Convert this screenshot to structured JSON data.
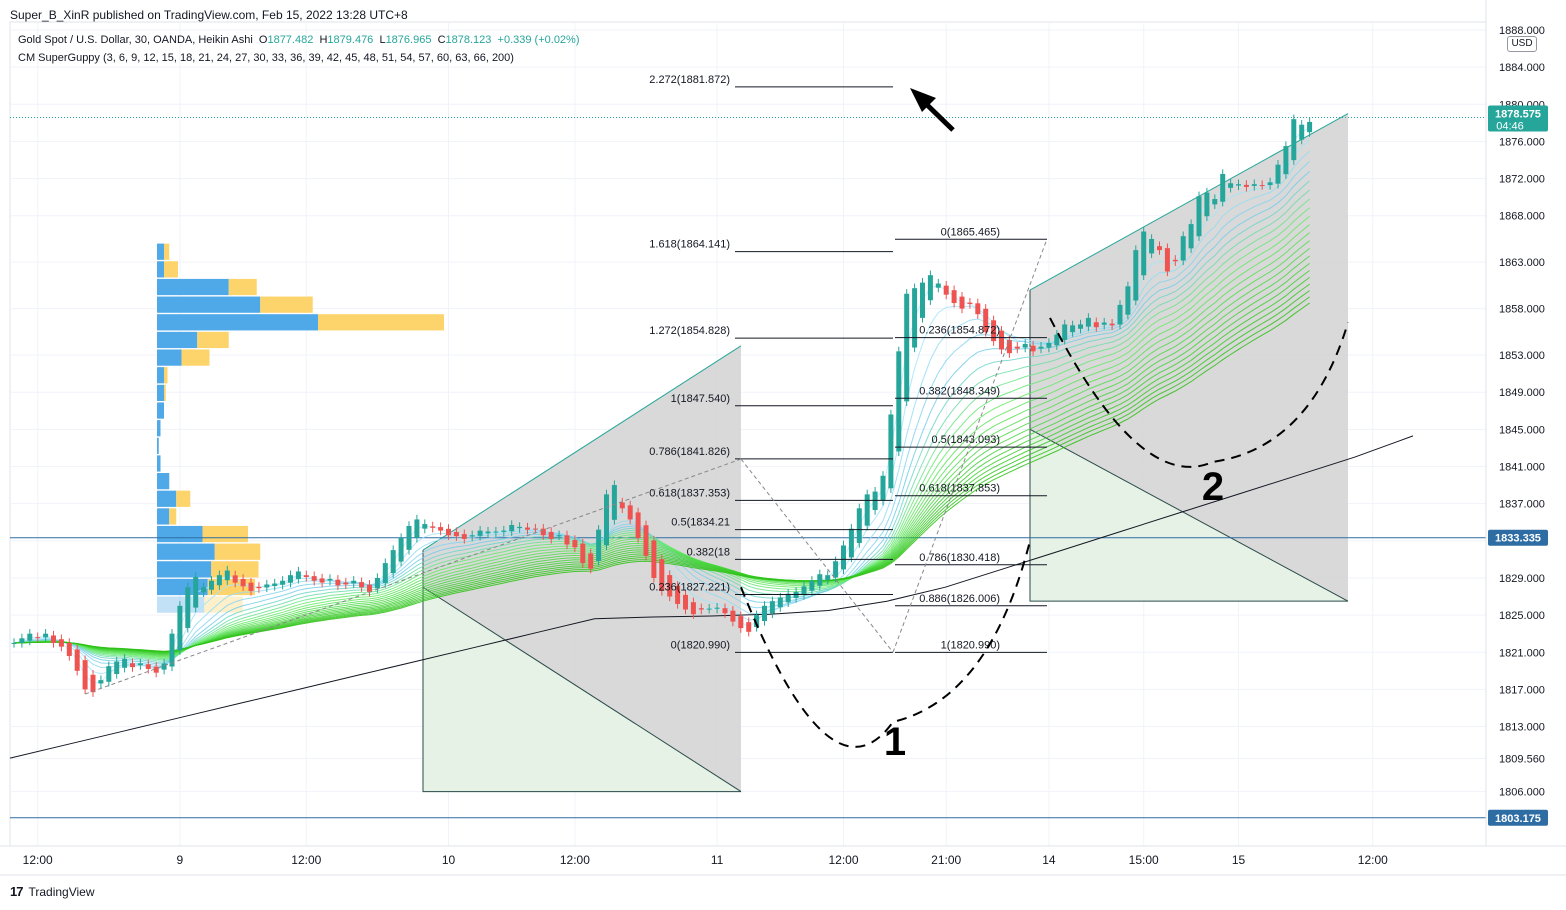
{
  "header": {
    "publisher_line": "Super_B_XinR published on TradingView.com, Feb 15, 2022 13:28 UTC+8"
  },
  "legend": {
    "symbol": "Gold Spot / U.S. Dollar, 30, OANDA, Heikin Ashi",
    "o_label": "O",
    "o_value": "1877.482",
    "h_label": "H",
    "h_value": "1879.476",
    "l_label": "L",
    "l_value": "1876.965",
    "c_label": "C",
    "c_value": "1878.123",
    "change": "+0.339 (+0.02%)",
    "indicator": "CM SuperGuppy (3, 6, 9, 12, 15, 18, 21, 24, 27, 30, 33, 36, 39, 42, 45, 48, 51, 54, 57, 60, 63, 66, 200)"
  },
  "currency": "USD",
  "price_tags": {
    "last": "1878.575",
    "countdown": "04:46",
    "hline1": "1833.335",
    "hline2": "1803.175"
  },
  "annotations": {
    "label1": "1",
    "label2": "2"
  },
  "footer": {
    "brand": "TradingView",
    "logo": "tv-logo-icon"
  },
  "colors": {
    "up": "#26a69a",
    "down": "#ef5350",
    "hline": "#2962ff",
    "volume_buy": "#4fa8e8",
    "volume_sell": "#fdd36b",
    "box_gray": "#d5d5d5",
    "box_green": "#e6f2e6"
  },
  "chart_data": {
    "type": "candlestick",
    "style": "Heikin Ashi",
    "ylim": [
      1801,
      1888
    ],
    "y_ticks": [
      "1888.000",
      "1884.000",
      "1880.000",
      "1876.000",
      "1872.000",
      "1868.000",
      "1863.000",
      "1858.000",
      "1853.000",
      "1849.000",
      "1845.000",
      "1841.000",
      "1837.000",
      "1833.000",
      "1829.000",
      "1825.000",
      "1821.000",
      "1817.000",
      "1813.000",
      "1809.560",
      "1806.000"
    ],
    "y_tick_values": [
      1888,
      1884,
      1880,
      1876,
      1872,
      1868,
      1863,
      1858,
      1853,
      1849,
      1845,
      1841,
      1837,
      1833,
      1829,
      1825,
      1821,
      1817,
      1813,
      1809.56,
      1806
    ],
    "x_ticks": [
      "12:00",
      "9",
      "12:00",
      "10",
      "12:00",
      "11",
      "12:00",
      "21:00",
      "14",
      "15:00",
      "15",
      "12:00"
    ],
    "x_tick_index": [
      3,
      21,
      37,
      55,
      71,
      89,
      105,
      118,
      131,
      143,
      155,
      172
    ],
    "horizontal_lines": [
      1833.335,
      1803.175
    ],
    "fib_left": [
      {
        "label": "2.272(1881.872)",
        "value": 1881.872
      },
      {
        "label": "1.618(1864.141)",
        "value": 1864.141
      },
      {
        "label": "1.272(1854.828)",
        "value": 1854.828
      },
      {
        "label": "1(1847.540)",
        "value": 1847.54
      },
      {
        "label": "0.786(1841.826)",
        "value": 1841.826
      },
      {
        "label": "0.618(1837.353)",
        "value": 1837.353
      },
      {
        "label": "0.5(1834.21",
        "value": 1834.21
      },
      {
        "label": "0.382(18",
        "value": 1831.0
      },
      {
        "label": "0.236(1827.221)",
        "value": 1827.221
      },
      {
        "label": "0(1820.990)",
        "value": 1820.99
      }
    ],
    "fib_right": [
      {
        "label": "0(1865.465)",
        "value": 1865.465
      },
      {
        "label": "0.236(1854.872)",
        "value": 1854.872
      },
      {
        "label": "0.382(1848.349)",
        "value": 1848.349
      },
      {
        "label": "0.5(1843.093)",
        "value": 1843.093
      },
      {
        "label": "0.618(1837.853)",
        "value": 1837.853
      },
      {
        "label": "0.786(1830.418)",
        "value": 1830.418
      },
      {
        "label": "0.886(1826.006)",
        "value": 1826.006
      },
      {
        "label": "1(1820.990)",
        "value": 1820.99
      }
    ],
    "closes": [
      1822,
      1822.5,
      1823,
      1822.6,
      1823,
      1822,
      1821.6,
      1820.6,
      1819,
      1817,
      1816.7,
      1818,
      1819.5,
      1820,
      1820.3,
      1819.4,
      1819.8,
      1819.2,
      1818.8,
      1819.8,
      1823,
      1826,
      1828,
      1829.1,
      1828,
      1828.7,
      1829.3,
      1829.8,
      1828.5,
      1828.1,
      1827.6,
      1827.9,
      1828.3,
      1828.4,
      1828.7,
      1829.3,
      1829.7,
      1829.1,
      1828.7,
      1828.5,
      1828.9,
      1828.2,
      1828.3,
      1828.7,
      1828,
      1827.5,
      1829,
      1830.6,
      1832,
      1833.3,
      1834.6,
      1835.3,
      1834.8,
      1834.4,
      1834.1,
      1833.6,
      1833.5,
      1833.2,
      1833.6,
      1834.1,
      1834,
      1834,
      1834.1,
      1834.7,
      1834.5,
      1834.2,
      1834.3,
      1833.6,
      1833.2,
      1833.6,
      1832.6,
      1832.3,
      1830.6,
      1830,
      1834.2,
      1838,
      1839,
      1836.5,
      1835.3,
      1833.3,
      1831.4,
      1829,
      1827.6,
      1827,
      1826.2,
      1825.6,
      1825.1,
      1825.6,
      1825.7,
      1825.8,
      1825.2,
      1824.3,
      1823.6,
      1823.2,
      1825,
      1826,
      1826.5,
      1826.9,
      1827.3,
      1827.5,
      1828.1,
      1828.7,
      1829.4,
      1829.3,
      1830.8,
      1832.5,
      1834.3,
      1836.5,
      1838,
      1838.3,
      1840,
      1846.6,
      1853.4,
      1859.6,
      1860.2,
      1860.8,
      1861.6,
      1860.7,
      1859.5,
      1858.6,
      1858,
      1858.5,
      1857.4,
      1855.5,
      1854.5,
      1853.6,
      1853.2,
      1853.7,
      1854.2,
      1853.4,
      1853.9,
      1854.3,
      1855.2,
      1856.3,
      1856.2,
      1856.3,
      1857,
      1856,
      1856.5,
      1856.2,
      1858.4,
      1860.4,
      1864.3,
      1866.3,
      1865.5,
      1864.3,
      1862,
      1863.1,
      1865.8,
      1867.1,
      1870.1,
      1870.5,
      1869.8,
      1872.5,
      1871.5,
      1871.4,
      1871.1,
      1871.4,
      1871.3,
      1871.6,
      1873.5,
      1875.5,
      1878.4,
      1877.8,
      1878.1
    ],
    "ma200": [
      1809.6,
      1811.1,
      1812.6,
      1814.1,
      1815.6,
      1817.1,
      1818.6,
      1820.1,
      1821.6,
      1823.1,
      1824.6,
      1824.8,
      1824.9,
      1825.1,
      1825.5,
      1826.5,
      1828,
      1830,
      1832,
      1834,
      1836,
      1838,
      1840,
      1842,
      1844.3
    ],
    "volume_profile": {
      "price_top": 1865.0,
      "row_height": 1.9,
      "buy": [
        0.4,
        0.4,
        4.1,
        5.9,
        9.2,
        2.3,
        1.4,
        0.4,
        0.4,
        0.4,
        0.2,
        0.1,
        0.2,
        0.7,
        1.1,
        0.7,
        2.6,
        3.3,
        3.1,
        2.9,
        2.7
      ],
      "sell": [
        0.3,
        0.8,
        1.6,
        3.0,
        7.2,
        1.8,
        1.6,
        0.2,
        0.1,
        0,
        0,
        0,
        0,
        0,
        0.8,
        0.4,
        2.6,
        2.6,
        2.7,
        2.7,
        2.2
      ]
    }
  }
}
